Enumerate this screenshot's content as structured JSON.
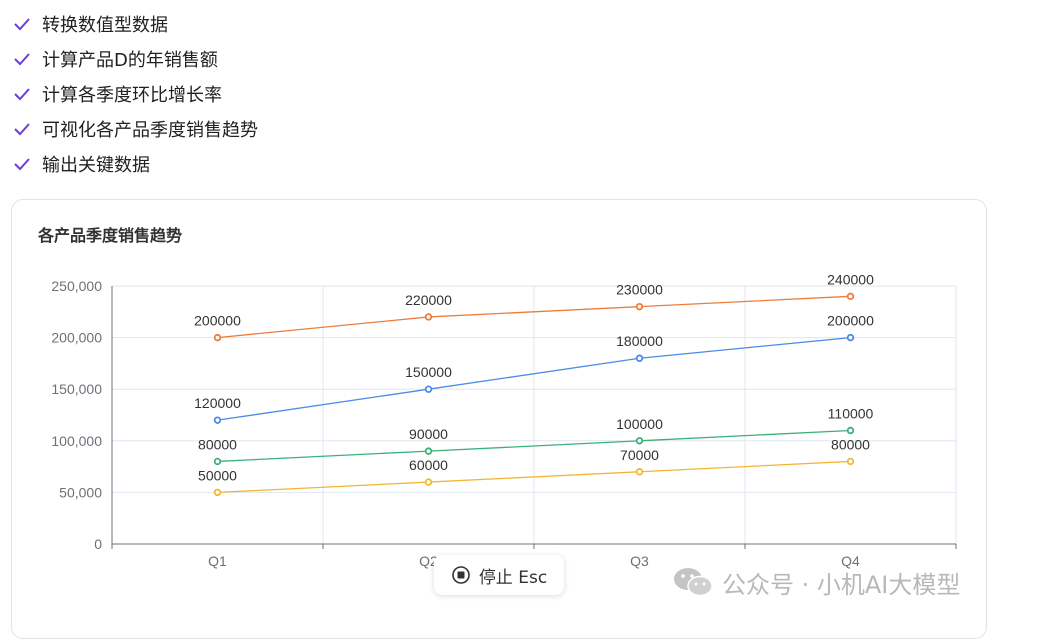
{
  "tasks": [
    {
      "label": "转换数值型数据"
    },
    {
      "label": "计算产品D的年销售额"
    },
    {
      "label": "计算各季度环比增长率"
    },
    {
      "label": "可视化各产品季度销售趋势"
    },
    {
      "label": "输出关键数据"
    }
  ],
  "colors": {
    "check": "#6b3fd9",
    "grid": "#e0e6f1",
    "axis": "#6e7079"
  },
  "chart_data": {
    "type": "line",
    "title": "各产品季度销售趋势",
    "categories": [
      "Q1",
      "Q2",
      "Q3",
      "Q4"
    ],
    "ylim": [
      0,
      250000
    ],
    "yticks": [
      0,
      50000,
      100000,
      150000,
      200000,
      250000
    ],
    "ytick_labels": [
      "0",
      "50,000",
      "100,000",
      "150,000",
      "200,000",
      "250,000"
    ],
    "grid": true,
    "series": [
      {
        "color": "#ee7b3a",
        "values": [
          200000,
          220000,
          230000,
          240000
        ]
      },
      {
        "color": "#4a8be8",
        "values": [
          120000,
          150000,
          180000,
          200000
        ]
      },
      {
        "color": "#3bb07a",
        "values": [
          80000,
          90000,
          100000,
          110000
        ]
      },
      {
        "color": "#f3b632",
        "values": [
          50000,
          60000,
          70000,
          80000
        ]
      }
    ]
  },
  "stop_button": {
    "label": "停止 Esc",
    "icon": "stop-circle-icon"
  },
  "watermark": {
    "text": "公众号 · 小机AI大模型",
    "icon": "wechat-icon"
  }
}
